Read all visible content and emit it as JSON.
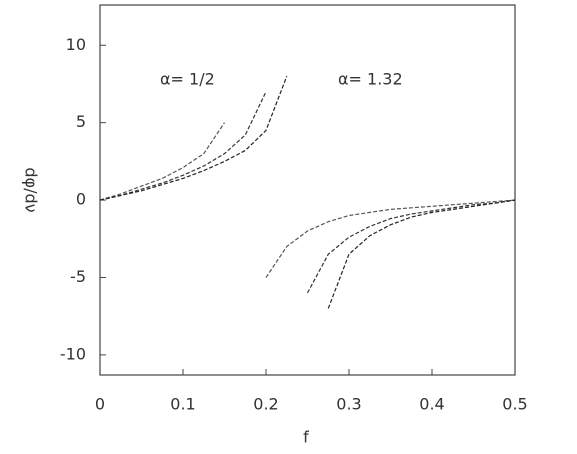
{
  "chart_data": {
    "type": "line",
    "x_label": "f",
    "y_label": "dφ/dν",
    "annotations": [
      "α= 1/2",
      "α= 1.32"
    ],
    "x": [
      0,
      0.025,
      0.05,
      0.075,
      0.1,
      0.125,
      0.15,
      0.175,
      0.2,
      0.225,
      0.25,
      0.275,
      0.3,
      0.325,
      0.35,
      0.375,
      0.4,
      0.425,
      0.45,
      0.475,
      0.5
    ],
    "series": [
      {
        "color": "#555555",
        "values": [
          0,
          0.4,
          0.9,
          1.4,
          2.1,
          3,
          5,
          null,
          -5,
          -3,
          -2,
          -1.4,
          -1,
          -0.8,
          -0.6,
          -0.5,
          -0.4,
          -0.3,
          -0.2,
          -0.1,
          0
        ]
      },
      {
        "color": "#333333",
        "values": [
          0,
          0.3,
          0.7,
          1.1,
          1.6,
          2.2,
          3,
          4.2,
          7,
          null,
          -6,
          -3.5,
          -2.4,
          -1.7,
          -1.2,
          -0.9,
          -0.7,
          -0.5,
          -0.3,
          -0.2,
          0
        ]
      },
      {
        "color": "#222222",
        "values": [
          0,
          0.3,
          0.6,
          1,
          1.4,
          1.9,
          2.5,
          3.2,
          4.5,
          8,
          null,
          -7,
          -3.5,
          -2.3,
          -1.6,
          -1.1,
          -0.8,
          -0.6,
          -0.4,
          -0.2,
          0
        ]
      }
    ],
    "xlim": [
      0,
      0.5
    ],
    "ylim": [
      -11.3,
      12.6
    ],
    "xticks": [
      0,
      0.1,
      0.2,
      0.3,
      0.4,
      0.5
    ],
    "yticks": [
      -10,
      -5,
      0,
      5,
      10
    ]
  }
}
